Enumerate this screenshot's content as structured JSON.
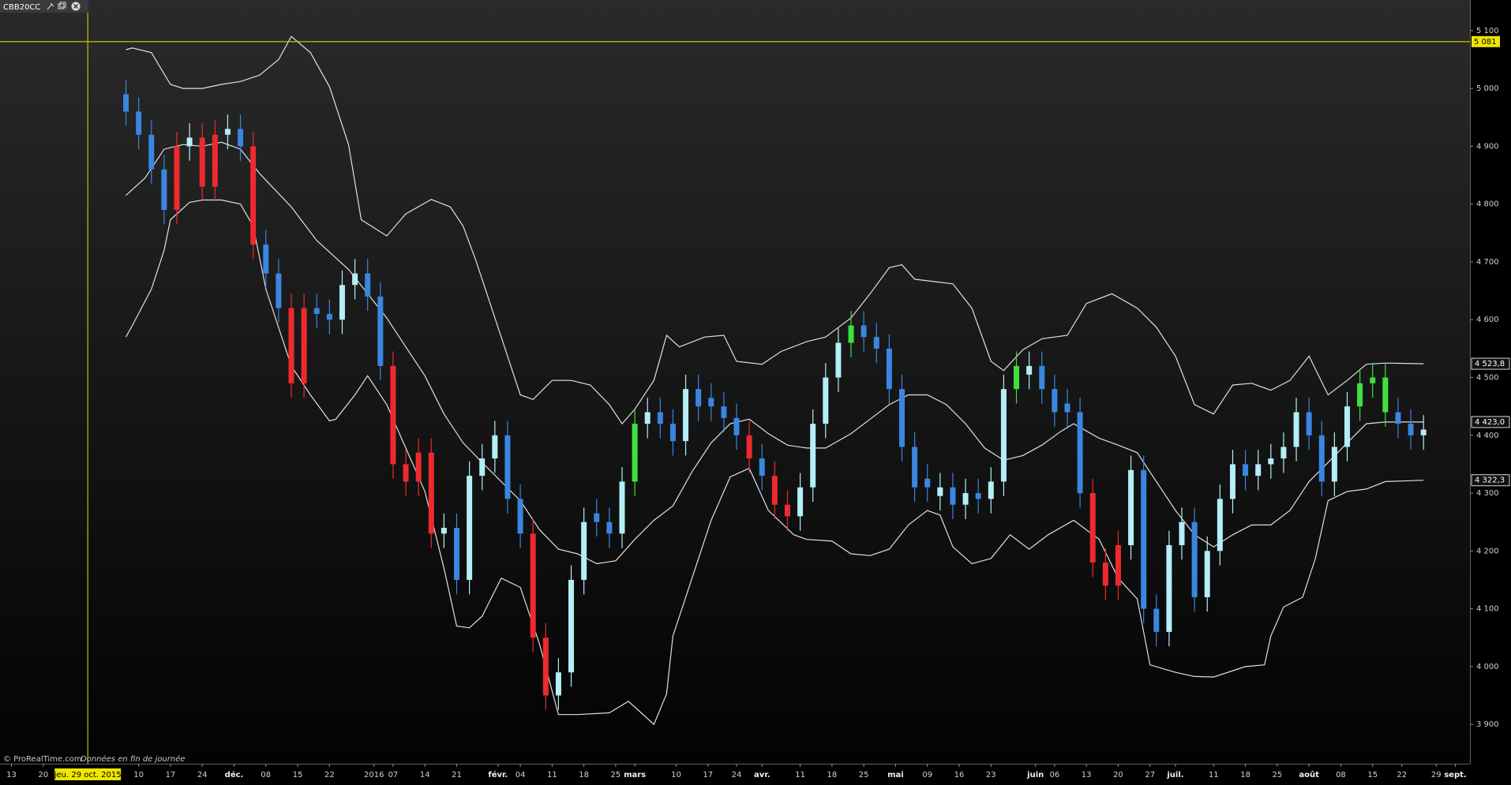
{
  "chart_data": {
    "type": "candlestick",
    "title": "CBB20CC",
    "source": "© ProRealTime.com",
    "note": "Données en fin de journée",
    "x": [
      18,
      20,
      22,
      24,
      26,
      28,
      30,
      32,
      34,
      36,
      38,
      40,
      42,
      44,
      46,
      48,
      50,
      52,
      54,
      56,
      58,
      60,
      62,
      64,
      66,
      68,
      70,
      72,
      74,
      76,
      78,
      80,
      82,
      84,
      86,
      88,
      90,
      92,
      94,
      96,
      98,
      100,
      102,
      104,
      106,
      108,
      110,
      112,
      114,
      116,
      118,
      120,
      122,
      124,
      126,
      128,
      130,
      132,
      134,
      136,
      138,
      140,
      142,
      144,
      146,
      148,
      150,
      152,
      154,
      156,
      158,
      160,
      162,
      164,
      166,
      168,
      170,
      172,
      174,
      176,
      178,
      180,
      182,
      184,
      186,
      188,
      190,
      192,
      194,
      196,
      198,
      200,
      202,
      204,
      206,
      208,
      210,
      212,
      214,
      216,
      218,
      220,
      222
    ],
    "open": [
      4990,
      4960,
      4920,
      4860,
      4790,
      4900,
      4915,
      4830,
      4920,
      4930,
      4900,
      4730,
      4680,
      4620,
      4490,
      4620,
      4610,
      4600,
      4660,
      4680,
      4640,
      4520,
      4350,
      4320,
      4370,
      4230,
      4240,
      4150,
      4330,
      4360,
      4400,
      4290,
      4230,
      4050,
      3950,
      3990,
      4150,
      4265,
      4250,
      4230,
      4320,
      4420,
      4440,
      4420,
      4390,
      4480,
      4465,
      4450,
      4430,
      4400,
      4360,
      4330,
      4280,
      4260,
      4310,
      4420,
      4500,
      4560,
      4590,
      4570,
      4550,
      4480,
      4380,
      4325,
      4295,
      4310,
      4280,
      4300,
      4290,
      4320,
      4480,
      4505,
      4520,
      4480,
      4455,
      4440,
      4300,
      4180,
      4140,
      4210,
      4340,
      4100,
      4060,
      4210,
      4250,
      4120,
      4200,
      4290,
      4350,
      4330,
      4350,
      4360,
      4380,
      4440,
      4400,
      4320,
      4380,
      4450,
      4490,
      4500,
      4440,
      4420,
      4400
    ],
    "high": [
      5015,
      4985,
      4945,
      4885,
      4925,
      4940,
      4940,
      4945,
      4955,
      4955,
      4925,
      4755,
      4705,
      4645,
      4645,
      4645,
      4635,
      4685,
      4705,
      4705,
      4665,
      4545,
      4375,
      4395,
      4395,
      4265,
      4265,
      4355,
      4385,
      4425,
      4425,
      4315,
      4255,
      4075,
      4015,
      4175,
      4275,
      4290,
      4275,
      4345,
      4445,
      4465,
      4465,
      4445,
      4505,
      4505,
      4490,
      4475,
      4455,
      4425,
      4385,
      4355,
      4305,
      4335,
      4445,
      4525,
      4585,
      4615,
      4615,
      4595,
      4575,
      4505,
      4405,
      4350,
      4335,
      4335,
      4325,
      4325,
      4345,
      4505,
      4545,
      4545,
      4545,
      4505,
      4480,
      4465,
      4325,
      4205,
      4235,
      4365,
      4365,
      4125,
      4235,
      4275,
      4275,
      4225,
      4315,
      4375,
      4375,
      4375,
      4385,
      4405,
      4465,
      4465,
      4425,
      4405,
      4475,
      4515,
      4525,
      4525,
      4465,
      4445,
      4435
    ],
    "low": [
      4935,
      4895,
      4835,
      4765,
      4765,
      4875,
      4805,
      4805,
      4895,
      4875,
      4705,
      4655,
      4595,
      4465,
      4465,
      4585,
      4575,
      4575,
      4635,
      4615,
      4495,
      4325,
      4295,
      4295,
      4205,
      4205,
      4125,
      4125,
      4305,
      4335,
      4265,
      4205,
      4025,
      3925,
      3925,
      3965,
      4125,
      4225,
      4205,
      4205,
      4295,
      4395,
      4395,
      4365,
      4365,
      4425,
      4425,
      4405,
      4375,
      4335,
      4305,
      4255,
      4235,
      4235,
      4285,
      4395,
      4475,
      4535,
      4545,
      4525,
      4455,
      4355,
      4285,
      4285,
      4270,
      4255,
      4255,
      4265,
      4265,
      4295,
      4455,
      4480,
      4455,
      4415,
      4415,
      4275,
      4155,
      4115,
      4115,
      4185,
      4075,
      4035,
      4035,
      4185,
      4095,
      4095,
      4175,
      4265,
      4305,
      4305,
      4325,
      4335,
      4355,
      4375,
      4295,
      4295,
      4355,
      4425,
      4465,
      4415,
      4395,
      4375,
      4375
    ],
    "close": [
      4960,
      4920,
      4860,
      4790,
      4900,
      4915,
      4830,
      4920,
      4930,
      4900,
      4730,
      4680,
      4620,
      4490,
      4620,
      4610,
      4600,
      4660,
      4680,
      4640,
      4520,
      4350,
      4320,
      4370,
      4230,
      4240,
      4150,
      4330,
      4360,
      4400,
      4290,
      4230,
      4050,
      3950,
      3990,
      4150,
      4250,
      4250,
      4230,
      4320,
      4420,
      4440,
      4420,
      4390,
      4480,
      4450,
      4450,
      4430,
      4400,
      4360,
      4330,
      4280,
      4260,
      4310,
      4420,
      4500,
      4560,
      4590,
      4570,
      4550,
      4480,
      4380,
      4310,
      4310,
      4310,
      4280,
      4300,
      4290,
      4320,
      4480,
      4520,
      4520,
      4480,
      4440,
      4440,
      4300,
      4180,
      4140,
      4210,
      4340,
      4100,
      4060,
      4210,
      4250,
      4120,
      4200,
      4290,
      4350,
      4330,
      4350,
      4360,
      4380,
      4440,
      4400,
      4320,
      4380,
      4450,
      4490,
      4500,
      4440,
      4420,
      4400,
      4410
    ],
    "colors": {
      "up": "#b4eef6",
      "down": "#3a86e0",
      "below_band": "#ee2a2e",
      "above_band": "#3fe03f"
    },
    "overlays": [
      {
        "color": "#e0e0e0",
        "x": [
          18,
          19,
          22,
          25,
          27,
          30,
          33,
          36,
          39,
          42,
          44,
          47,
          50,
          53,
          55,
          59,
          62,
          66,
          69,
          71,
          73,
          77,
          80,
          82,
          85,
          88,
          91,
          94,
          96,
          98,
          101,
          103,
          105,
          109,
          112,
          114,
          118,
          121,
          125,
          128,
          132,
          135,
          138,
          140,
          142,
          148,
          151,
          154,
          156,
          159,
          162,
          166,
          169,
          173,
          177,
          180,
          183,
          186,
          189,
          192,
          195,
          198,
          201,
          204,
          207,
          210,
          213,
          216,
          222
        ],
        "values": [
          5067,
          5070,
          5062,
          5007,
          5000,
          5000,
          5007,
          5012,
          5023,
          5050,
          5090,
          5062,
          5003,
          4903,
          4773,
          4745,
          4783,
          4808,
          4795,
          4762,
          4703,
          4570,
          4470,
          4462,
          4495,
          4495,
          4487,
          4453,
          4420,
          4445,
          4495,
          4573,
          4553,
          4570,
          4573,
          4528,
          4523,
          4545,
          4562,
          4570,
          4603,
          4645,
          4690,
          4695,
          4670,
          4662,
          4620,
          4528,
          4512,
          4548,
          4567,
          4573,
          4628,
          4645,
          4620,
          4587,
          4537,
          4453,
          4437,
          4487,
          4490,
          4478,
          4495,
          4537,
          4470,
          4495,
          4523,
          4525,
          4523.8
        ]
      },
      {
        "color": "#e0e0e0",
        "x": [
          18,
          21,
          24,
          27,
          30,
          33,
          36,
          39,
          44,
          48,
          53,
          56,
          59,
          62,
          65,
          68,
          71,
          74,
          77,
          80,
          83,
          86,
          89,
          92,
          95,
          98,
          101,
          104,
          107,
          110,
          113,
          116,
          119,
          122,
          125,
          128,
          132,
          135,
          138,
          141,
          144,
          147,
          150,
          153,
          156,
          159,
          162,
          165,
          167,
          171,
          174,
          177,
          180,
          183,
          186,
          189,
          192,
          195,
          198,
          201,
          204,
          207,
          210,
          213,
          216,
          222
        ],
        "values": [
          4815,
          4845,
          4895,
          4903,
          4900,
          4907,
          4895,
          4853,
          4795,
          4737,
          4687,
          4645,
          4603,
          4553,
          4503,
          4437,
          4387,
          4353,
          4320,
          4287,
          4237,
          4203,
          4195,
          4178,
          4183,
          4220,
          4253,
          4278,
          4337,
          4387,
          4420,
          4428,
          4403,
          4383,
          4378,
          4378,
          4403,
          4428,
          4453,
          4470,
          4470,
          4453,
          4420,
          4378,
          4357,
          4365,
          4383,
          4407,
          4420,
          4395,
          4383,
          4370,
          4320,
          4270,
          4228,
          4207,
          4228,
          4245,
          4245,
          4270,
          4320,
          4353,
          4387,
          4420,
          4423,
          4423.0
        ]
      },
      {
        "color": "#e0e0e0",
        "x": [
          18,
          19,
          22,
          24,
          25,
          28,
          30,
          33,
          36,
          38,
          40,
          44,
          47,
          50,
          51,
          54,
          56,
          59,
          62,
          65,
          68,
          70,
          72,
          74,
          77,
          80,
          83,
          86,
          89,
          94,
          97,
          99,
          101,
          103,
          104,
          107,
          110,
          113,
          116,
          119,
          123,
          125,
          129,
          132,
          135,
          138,
          141,
          144,
          146,
          148,
          151,
          154,
          157,
          160,
          163,
          167,
          171,
          174,
          177,
          179,
          183,
          186,
          189,
          194,
          197,
          198,
          200,
          203,
          205,
          207,
          210,
          213,
          216,
          222
        ],
        "values": [
          4570,
          4590,
          4653,
          4720,
          4773,
          4803,
          4807,
          4807,
          4800,
          4762,
          4653,
          4520,
          4470,
          4425,
          4428,
          4470,
          4503,
          4453,
          4378,
          4303,
          4170,
          4070,
          4067,
          4087,
          4153,
          4137,
          4040,
          3917,
          3917,
          3920,
          3940,
          3920,
          3900,
          3953,
          4053,
          4153,
          4253,
          4328,
          4343,
          4270,
          4228,
          4220,
          4217,
          4195,
          4192,
          4203,
          4245,
          4270,
          4262,
          4207,
          4178,
          4187,
          4228,
          4203,
          4228,
          4253,
          4220,
          4153,
          4117,
          4003,
          3990,
          3983,
          3982,
          4000,
          4003,
          4053,
          4103,
          4120,
          4187,
          4287,
          4303,
          4307,
          4320,
          4322.3
        ]
      }
    ],
    "xlim": [
      -1.8,
      229.3
    ],
    "xticks": [
      {
        "value": 0,
        "label": "13"
      },
      {
        "value": 5,
        "label": "20"
      },
      {
        "value": 20,
        "label": "10"
      },
      {
        "value": 25,
        "label": "17"
      },
      {
        "value": 30,
        "label": "24"
      },
      {
        "value": 35,
        "label": "déc."
      },
      {
        "value": 40,
        "label": "08"
      },
      {
        "value": 45,
        "label": "15"
      },
      {
        "value": 50,
        "label": "22"
      },
      {
        "value": 57,
        "label": "2016"
      },
      {
        "value": 60,
        "label": "07"
      },
      {
        "value": 65,
        "label": "14"
      },
      {
        "value": 70,
        "label": "21"
      },
      {
        "value": 76.5,
        "label": "févr."
      },
      {
        "value": 80,
        "label": "04"
      },
      {
        "value": 85,
        "label": "11"
      },
      {
        "value": 90,
        "label": "18"
      },
      {
        "value": 95,
        "label": "25"
      },
      {
        "value": 98,
        "label": "mars"
      },
      {
        "value": 104.5,
        "label": "10"
      },
      {
        "value": 109.5,
        "label": "17"
      },
      {
        "value": 114,
        "label": "24"
      },
      {
        "value": 118,
        "label": "avr."
      },
      {
        "value": 124,
        "label": "11"
      },
      {
        "value": 129,
        "label": "18"
      },
      {
        "value": 134,
        "label": "25"
      },
      {
        "value": 139,
        "label": "mai"
      },
      {
        "value": 144,
        "label": "09"
      },
      {
        "value": 149,
        "label": "16"
      },
      {
        "value": 154,
        "label": "23"
      },
      {
        "value": 161,
        "label": "juin"
      },
      {
        "value": 164,
        "label": "06"
      },
      {
        "value": 169,
        "label": "13"
      },
      {
        "value": 174,
        "label": "20"
      },
      {
        "value": 179,
        "label": "27"
      },
      {
        "value": 183,
        "label": "juil."
      },
      {
        "value": 189,
        "label": "11"
      },
      {
        "value": 194,
        "label": "18"
      },
      {
        "value": 199,
        "label": "25"
      },
      {
        "value": 204,
        "label": "août"
      },
      {
        "value": 209,
        "label": "08"
      },
      {
        "value": 214,
        "label": "15"
      },
      {
        "value": 218.6,
        "label": "22"
      },
      {
        "value": 224,
        "label": "29"
      },
      {
        "value": 227,
        "label": "sept."
      }
    ],
    "ylim": [
      3832,
      5153
    ],
    "yticks": [
      {
        "value": 5100,
        "label": "5 100"
      },
      {
        "value": 5000,
        "label": "5 000"
      },
      {
        "value": 4900,
        "label": "4 900"
      },
      {
        "value": 4800,
        "label": "4 800"
      },
      {
        "value": 4700,
        "label": "4 700"
      },
      {
        "value": 4600,
        "label": "4 600"
      },
      {
        "value": 4500,
        "label": "4 500"
      },
      {
        "value": 4400,
        "label": "4 400"
      },
      {
        "value": 4300,
        "label": "4 300"
      },
      {
        "value": 4200,
        "label": "4 200"
      },
      {
        "value": 4100,
        "label": "4 100"
      },
      {
        "value": 4000,
        "label": "4 000"
      },
      {
        "value": 3900,
        "label": "3 900"
      }
    ],
    "hline": {
      "value": 5081,
      "label": "5 081",
      "color": "#c8be00"
    },
    "crosshair": {
      "x": 12,
      "label": "jeu. 29 oct. 2015",
      "color": "#c8be00"
    },
    "last_values": [
      {
        "value": 4523.8,
        "label": "4 523,8"
      },
      {
        "value": 4423.0,
        "label": "4 423,0"
      },
      {
        "value": 4322.3,
        "label": "4 322,3"
      }
    ]
  }
}
